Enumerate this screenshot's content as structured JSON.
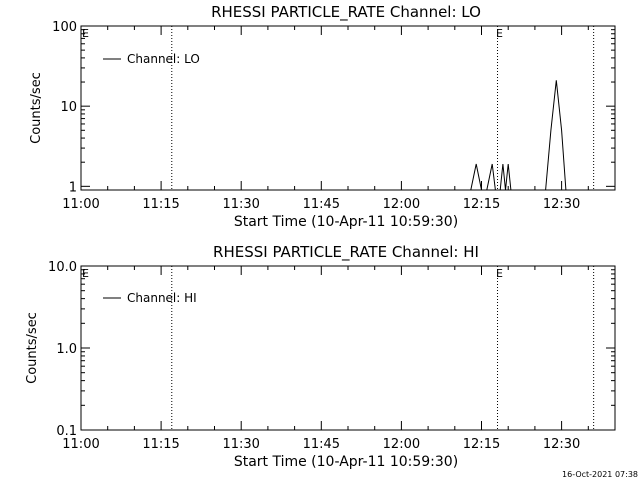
{
  "footer": {
    "timestamp": "16-Oct-2021 07:38"
  },
  "chart_data": [
    {
      "type": "line",
      "title": "RHESSI PARTICLE_RATE Channel: LO",
      "xlabel": "Start Time (10-Apr-11 10:59:30)",
      "ylabel": "Counts/sec",
      "y_scale": "log",
      "ylim": [
        0.9,
        100
      ],
      "xlim": [
        "11:00",
        "12:40"
      ],
      "x_ticks": [
        "11:00",
        "11:15",
        "11:30",
        "11:45",
        "12:00",
        "12:15",
        "12:30"
      ],
      "y_ticks": [
        "1",
        "10",
        "100"
      ],
      "grid": false,
      "legend": {
        "position": "top-left",
        "entries": [
          "Channel: LO"
        ]
      },
      "annotations": [
        {
          "type": "vline",
          "style": "dotted",
          "x": "11:17"
        },
        {
          "type": "vline",
          "style": "dotted",
          "x": "12:18",
          "label": "E"
        },
        {
          "type": "vline",
          "style": "dotted",
          "x": "12:36"
        },
        {
          "type": "marker",
          "x": "11:00",
          "label": "E"
        }
      ],
      "series": [
        {
          "name": "Channel: LO",
          "points": [
            [
              "12:13",
              0.9
            ],
            [
              "12:14",
              1.9
            ],
            [
              "12:15",
              0.9
            ],
            [
              "12:16",
              0.9
            ],
            [
              "12:17",
              1.9
            ],
            [
              "12:17.6",
              0.9
            ],
            [
              "12:18.5",
              0.9
            ],
            [
              "12:19",
              1.9
            ],
            [
              "12:19.5",
              0.9
            ],
            [
              "12:20",
              1.9
            ],
            [
              "12:20.5",
              0.9
            ],
            [
              "12:27",
              0.9
            ],
            [
              "12:28",
              5
            ],
            [
              "12:29",
              21
            ],
            [
              "12:30",
              5
            ],
            [
              "12:30.8",
              0.9
            ]
          ]
        }
      ]
    },
    {
      "type": "line",
      "title": "RHESSI PARTICLE_RATE Channel: HI",
      "xlabel": "Start Time (10-Apr-11 10:59:30)",
      "ylabel": "Counts/sec",
      "y_scale": "log",
      "ylim": [
        0.1,
        10
      ],
      "xlim": [
        "11:00",
        "12:40"
      ],
      "x_ticks": [
        "11:00",
        "11:15",
        "11:30",
        "11:45",
        "12:00",
        "12:15",
        "12:30"
      ],
      "y_ticks": [
        "0.1",
        "1.0",
        "10.0"
      ],
      "grid": false,
      "legend": {
        "position": "top-left",
        "entries": [
          "Channel: HI"
        ]
      },
      "annotations": [
        {
          "type": "vline",
          "style": "dotted",
          "x": "11:17"
        },
        {
          "type": "vline",
          "style": "dotted",
          "x": "12:18",
          "label": "E"
        },
        {
          "type": "vline",
          "style": "dotted",
          "x": "12:36"
        },
        {
          "type": "marker",
          "x": "11:00",
          "label": "E"
        }
      ],
      "series": [
        {
          "name": "Channel: HI",
          "points": []
        }
      ]
    }
  ]
}
